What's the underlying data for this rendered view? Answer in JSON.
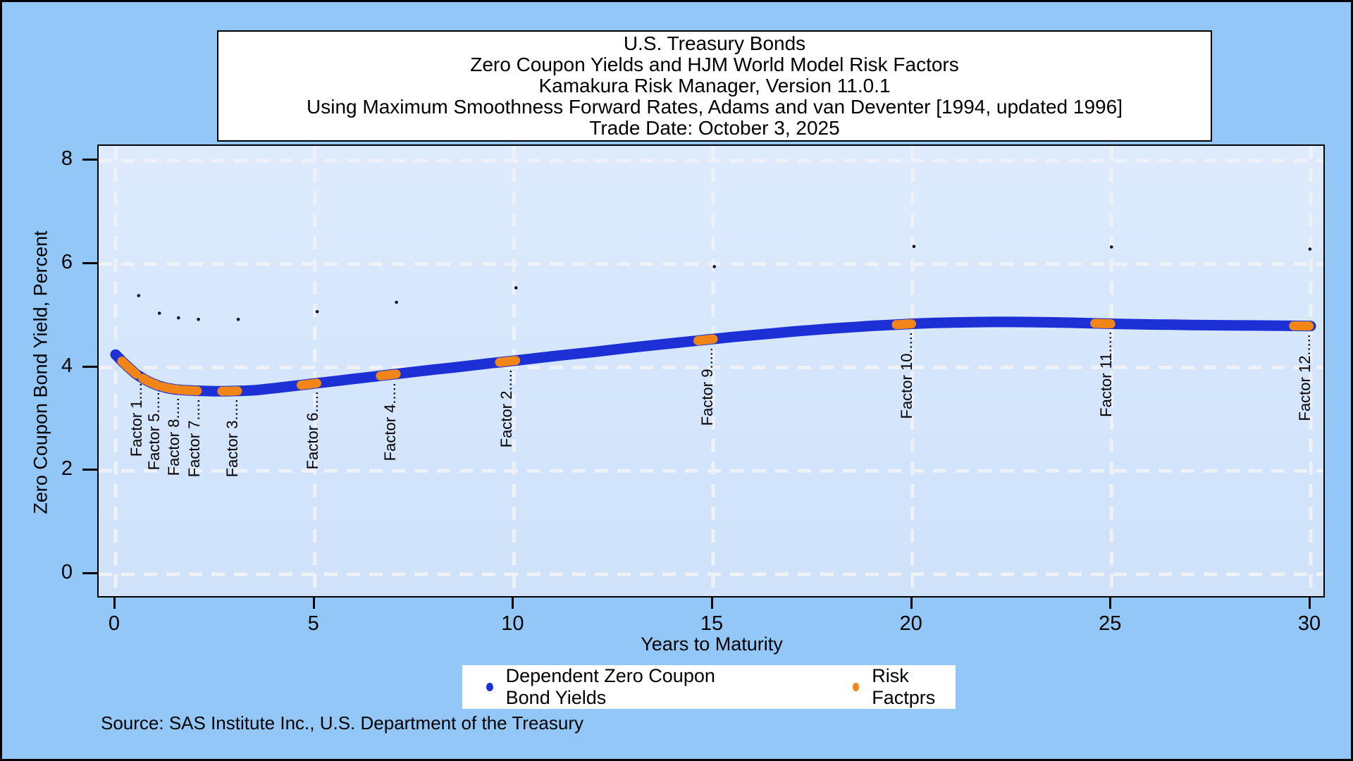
{
  "figure": {
    "title_lines": [
      "U.S. Treasury Bonds",
      "Zero Coupon Yields and HJM World Model Risk Factors",
      "Kamakura Risk Manager, Version 11.0.1",
      "Using Maximum Smoothness Forward Rates, Adams and van Deventer [1994, updated 1996]",
      "Trade Date: October 3, 2025"
    ],
    "source_note": "Source: SAS Institute Inc., U.S. Department of the Treasury",
    "legend": {
      "items": [
        {
          "label": "Dependent Zero Coupon Bond Yields",
          "color": "#1c30d6",
          "marker": "dot"
        },
        {
          "label": "Risk Factprs",
          "color": "#f18518",
          "marker": "dot"
        }
      ]
    },
    "colors": {
      "background": "#93c7f8",
      "plot_background_top": "#deebfd",
      "plot_background_bottom": "#cfe2fa",
      "gridline": "#eef1f6",
      "yield_curve": "#1c30d6",
      "risk_factor": "#f18518",
      "stray_dot": "#10102c"
    }
  },
  "chart_data": {
    "type": "line",
    "title": "U.S. Treasury Bonds - Zero Coupon Yields and HJM World Model Risk Factors",
    "xlabel": "Years to Maturity",
    "ylabel": "Zero Coupon Bond Yield, Percent",
    "xlim": [
      -0.42,
      32.15
    ],
    "ylim": [
      -0.28,
      8.28
    ],
    "x_ticks": [
      0,
      5,
      10,
      15,
      20,
      25,
      30
    ],
    "y_ticks": [
      0,
      2,
      4,
      6,
      8
    ],
    "grid": "white dashed on both axes",
    "legend_position": "bottom center",
    "series": [
      {
        "name": "Dependent Zero Coupon Bond Yields",
        "type": "thick line (dense scatter)",
        "color": "#1c30d6",
        "points": [
          [
            0,
            4.25
          ],
          [
            0.15,
            4.13
          ],
          [
            0.3,
            4.02
          ],
          [
            0.5,
            3.88
          ],
          [
            0.7,
            3.78
          ],
          [
            0.9,
            3.7
          ],
          [
            1.1,
            3.64
          ],
          [
            1.3,
            3.6
          ],
          [
            1.5,
            3.575
          ],
          [
            1.75,
            3.56
          ],
          [
            2,
            3.55
          ],
          [
            2.25,
            3.545
          ],
          [
            2.5,
            3.54
          ],
          [
            2.75,
            3.54
          ],
          [
            3,
            3.545
          ],
          [
            3.25,
            3.55
          ],
          [
            3.5,
            3.56
          ],
          [
            4,
            3.6
          ],
          [
            4.5,
            3.645
          ],
          [
            5,
            3.69
          ],
          [
            5.5,
            3.735
          ],
          [
            6,
            3.78
          ],
          [
            6.5,
            3.825
          ],
          [
            7,
            3.87
          ],
          [
            7.5,
            3.915
          ],
          [
            8,
            3.96
          ],
          [
            8.5,
            4.0
          ],
          [
            9,
            4.045
          ],
          [
            9.5,
            4.09
          ],
          [
            10,
            4.13
          ],
          [
            10.5,
            4.175
          ],
          [
            11,
            4.22
          ],
          [
            11.5,
            4.26
          ],
          [
            12,
            4.3
          ],
          [
            12.5,
            4.345
          ],
          [
            13,
            4.39
          ],
          [
            13.5,
            4.43
          ],
          [
            14,
            4.47
          ],
          [
            14.5,
            4.51
          ],
          [
            15,
            4.55
          ],
          [
            15.5,
            4.59
          ],
          [
            16,
            4.625
          ],
          [
            16.5,
            4.66
          ],
          [
            17,
            4.695
          ],
          [
            17.5,
            4.725
          ],
          [
            18,
            4.755
          ],
          [
            18.5,
            4.78
          ],
          [
            19,
            4.805
          ],
          [
            19.5,
            4.825
          ],
          [
            20,
            4.845
          ],
          [
            20.5,
            4.86
          ],
          [
            21,
            4.87
          ],
          [
            21.5,
            4.875
          ],
          [
            22,
            4.88
          ],
          [
            22.5,
            4.88
          ],
          [
            23,
            4.878
          ],
          [
            23.5,
            4.872
          ],
          [
            24,
            4.865
          ],
          [
            24.5,
            4.855
          ],
          [
            25,
            4.845
          ],
          [
            25.5,
            4.838
          ],
          [
            26,
            4.832
          ],
          [
            26.5,
            4.827
          ],
          [
            27,
            4.822
          ],
          [
            27.5,
            4.818
          ],
          [
            28,
            4.815
          ],
          [
            28.5,
            4.812
          ],
          [
            29,
            4.81
          ],
          [
            29.5,
            4.805
          ],
          [
            30,
            4.8
          ]
        ]
      },
      {
        "name": "Risk Factprs",
        "type": "short orange segments overlaid on curve",
        "color": "#f18518",
        "segments": [
          {
            "factor": 1,
            "x1": 0.16,
            "x2": 0.52
          },
          {
            "factor": 5,
            "x1": 0.68,
            "x2": 1.08
          },
          {
            "factor": 8,
            "x1": 1.19,
            "x2": 1.6
          },
          {
            "factor": 7,
            "x1": 1.66,
            "x2": 2.05
          },
          {
            "factor": 3,
            "x1": 2.67,
            "x2": 3.06
          },
          {
            "factor": 6,
            "x1": 4.66,
            "x2": 5.05
          },
          {
            "factor": 4,
            "x1": 6.65,
            "x2": 7.04
          },
          {
            "factor": 2,
            "x1": 9.64,
            "x2": 10.04
          },
          {
            "factor": 9,
            "x1": 14.62,
            "x2": 15.0
          },
          {
            "factor": 10,
            "x1": 19.6,
            "x2": 19.98
          },
          {
            "factor": 11,
            "x1": 24.58,
            "x2": 24.98
          },
          {
            "factor": 12,
            "x1": 29.57,
            "x2": 29.96
          }
        ]
      }
    ],
    "factor_labels": [
      {
        "text": "Factor 1....",
        "x": 0.55,
        "dot": [
          0.58,
          5.39
        ]
      },
      {
        "text": "Factor 5.....",
        "x": 0.99,
        "dot": [
          1.1,
          5.05
        ]
      },
      {
        "text": "Factor 8.....",
        "x": 1.49,
        "dot": [
          1.58,
          4.96
        ]
      },
      {
        "text": "Factor 7.....",
        "x": 2.0,
        "dot": [
          2.08,
          4.93
        ]
      },
      {
        "text": "Factor 3.....",
        "x": 2.96,
        "dot": [
          3.08,
          4.93
        ]
      },
      {
        "text": "Factor 6.....",
        "x": 4.97,
        "dot": [
          5.06,
          5.08
        ]
      },
      {
        "text": "Factor 4.....",
        "x": 6.92,
        "dot": [
          7.05,
          5.26
        ]
      },
      {
        "text": "Factor 2.....",
        "x": 9.84,
        "dot": [
          10.05,
          5.54
        ]
      },
      {
        "text": "Factor 9.....",
        "x": 14.88,
        "dot": [
          15.03,
          5.95
        ]
      },
      {
        "text": "Factor 10.....",
        "x": 19.89,
        "dot": [
          20.04,
          6.34
        ]
      },
      {
        "text": "Factor 11.....",
        "x": 24.88,
        "dot": [
          25.0,
          6.33
        ]
      },
      {
        "text": "Factor 12.....",
        "x": 29.88,
        "dot": [
          29.98,
          6.29
        ]
      }
    ]
  }
}
